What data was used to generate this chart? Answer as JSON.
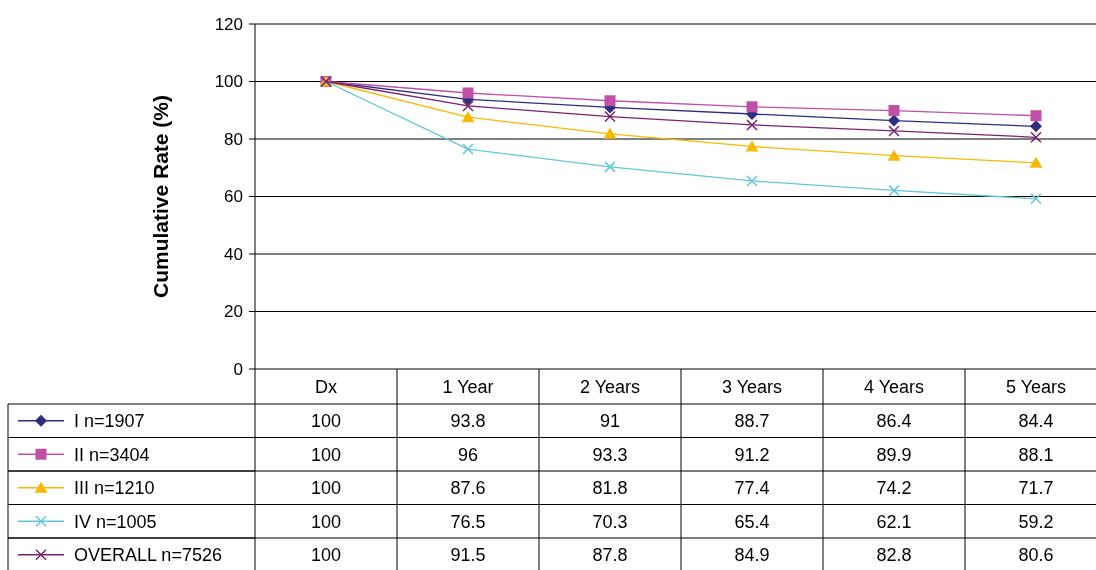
{
  "chart_data": {
    "type": "line",
    "ylabel": "Cumulative Rate (%)",
    "categories": [
      "Dx",
      "1 Year",
      "2 Years",
      "3 Years",
      "4 Years",
      "5 Years"
    ],
    "series": [
      {
        "name": "I n=1907",
        "color": "#2b2f7e",
        "marker": "diamond",
        "values": [
          100,
          93.8,
          91,
          88.7,
          86.4,
          84.4
        ]
      },
      {
        "name": "II n=3404",
        "color": "#c04fa6",
        "marker": "square",
        "values": [
          100,
          96,
          93.3,
          91.2,
          89.9,
          88.1
        ]
      },
      {
        "name": "III n=1210",
        "color": "#f9b800",
        "marker": "triangle",
        "values": [
          100,
          87.6,
          81.8,
          77.4,
          74.2,
          71.7
        ]
      },
      {
        "name": "IV n=1005",
        "color": "#5ec8da",
        "marker": "cross",
        "values": [
          100,
          76.5,
          70.3,
          65.4,
          62.1,
          59.2
        ]
      },
      {
        "name": "OVERALL n=7526",
        "color": "#7a2070",
        "marker": "cross",
        "values": [
          100,
          91.5,
          87.8,
          84.9,
          82.8,
          80.6
        ]
      }
    ],
    "ylim": [
      0,
      120
    ],
    "yticks": [
      0,
      20,
      40,
      60,
      80,
      100,
      120
    ],
    "grid": "y",
    "legend": "bottom",
    "data_labels": true
  }
}
